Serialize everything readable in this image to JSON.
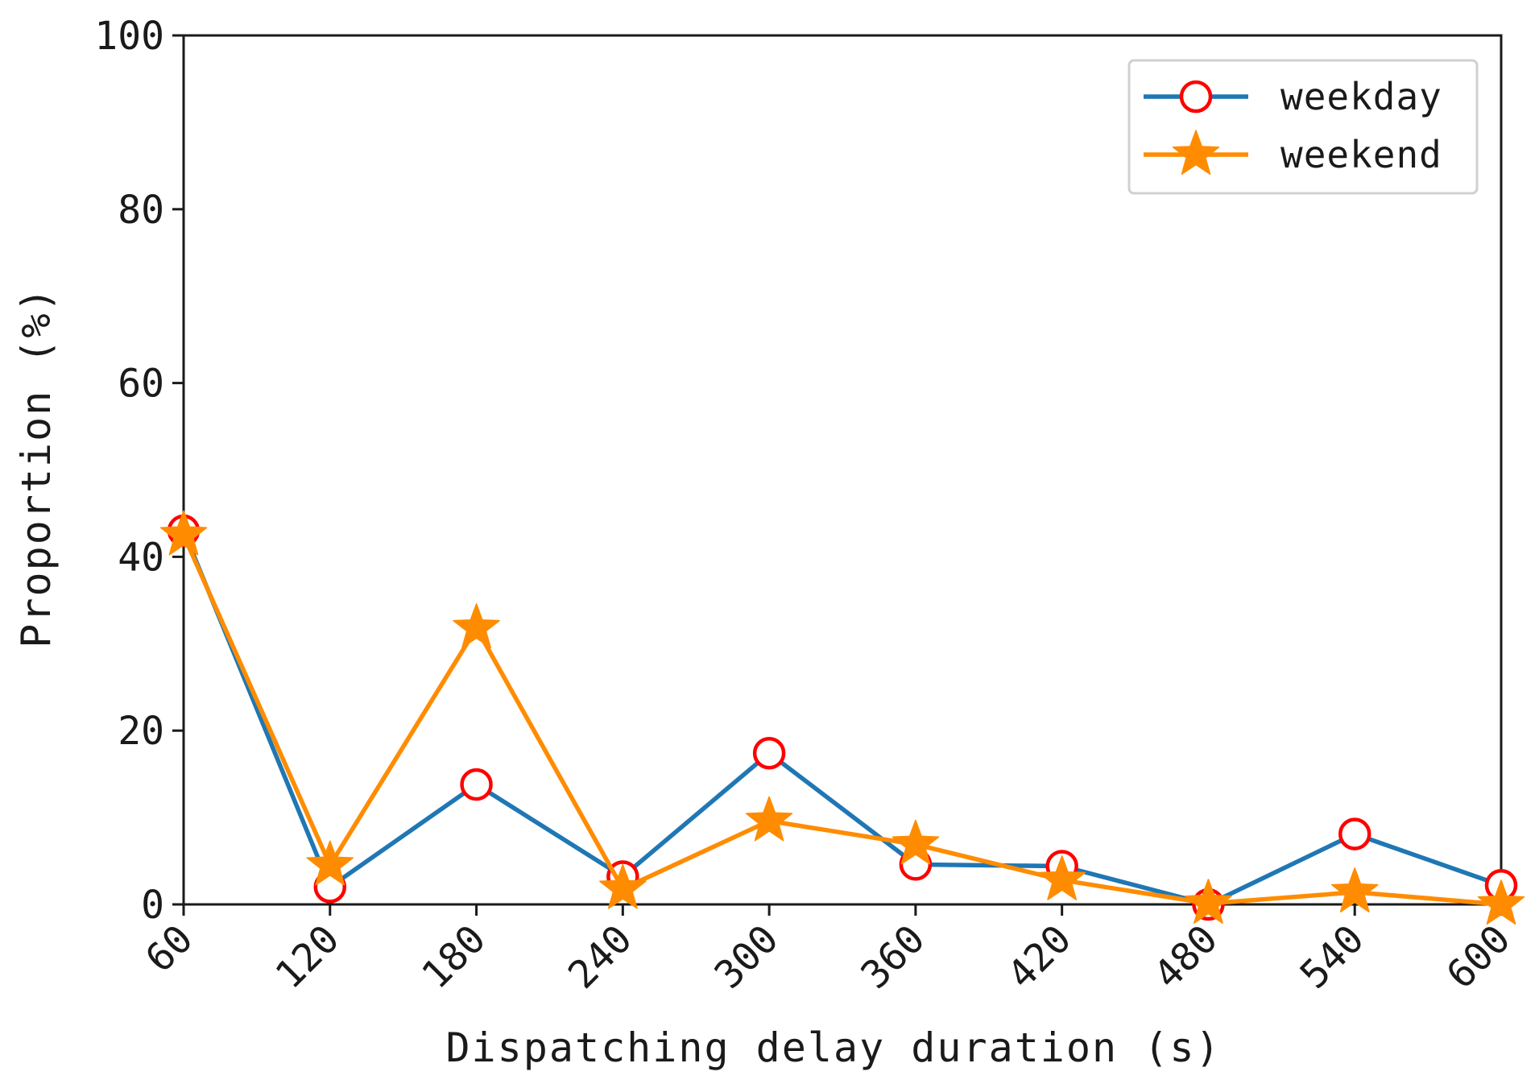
{
  "chart_data": {
    "type": "line",
    "title": "",
    "xlabel": "Dispatching delay duration (s)",
    "ylabel": "Proportion (%)",
    "x": [
      60,
      120,
      180,
      240,
      300,
      360,
      420,
      480,
      540,
      600
    ],
    "x_tick_labels": [
      "60",
      "120",
      "180",
      "240",
      "300",
      "360",
      "420",
      "480",
      "540",
      "600"
    ],
    "xlim": [
      60,
      600
    ],
    "ylim": [
      0,
      100
    ],
    "y_ticks": [
      0,
      20,
      40,
      60,
      80,
      100
    ],
    "y_tick_labels": [
      "0",
      "20",
      "40",
      "60",
      "80",
      "100"
    ],
    "grid": false,
    "legend_position": "top-right",
    "series": [
      {
        "name": "weekday",
        "values": [
          43,
          2,
          13.8,
          3.2,
          17.4,
          4.6,
          4.4,
          0,
          8.1,
          2.2
        ],
        "line_color": "#1f77b4",
        "marker": "circle",
        "marker_color": "#ff0000"
      },
      {
        "name": "weekend",
        "values": [
          42.5,
          4.5,
          31.8,
          1.8,
          9.6,
          6.9,
          2.8,
          0.1,
          1.4,
          0
        ],
        "line_color": "#ff8c00",
        "marker": "star",
        "marker_color": "#ff8c00"
      }
    ]
  }
}
